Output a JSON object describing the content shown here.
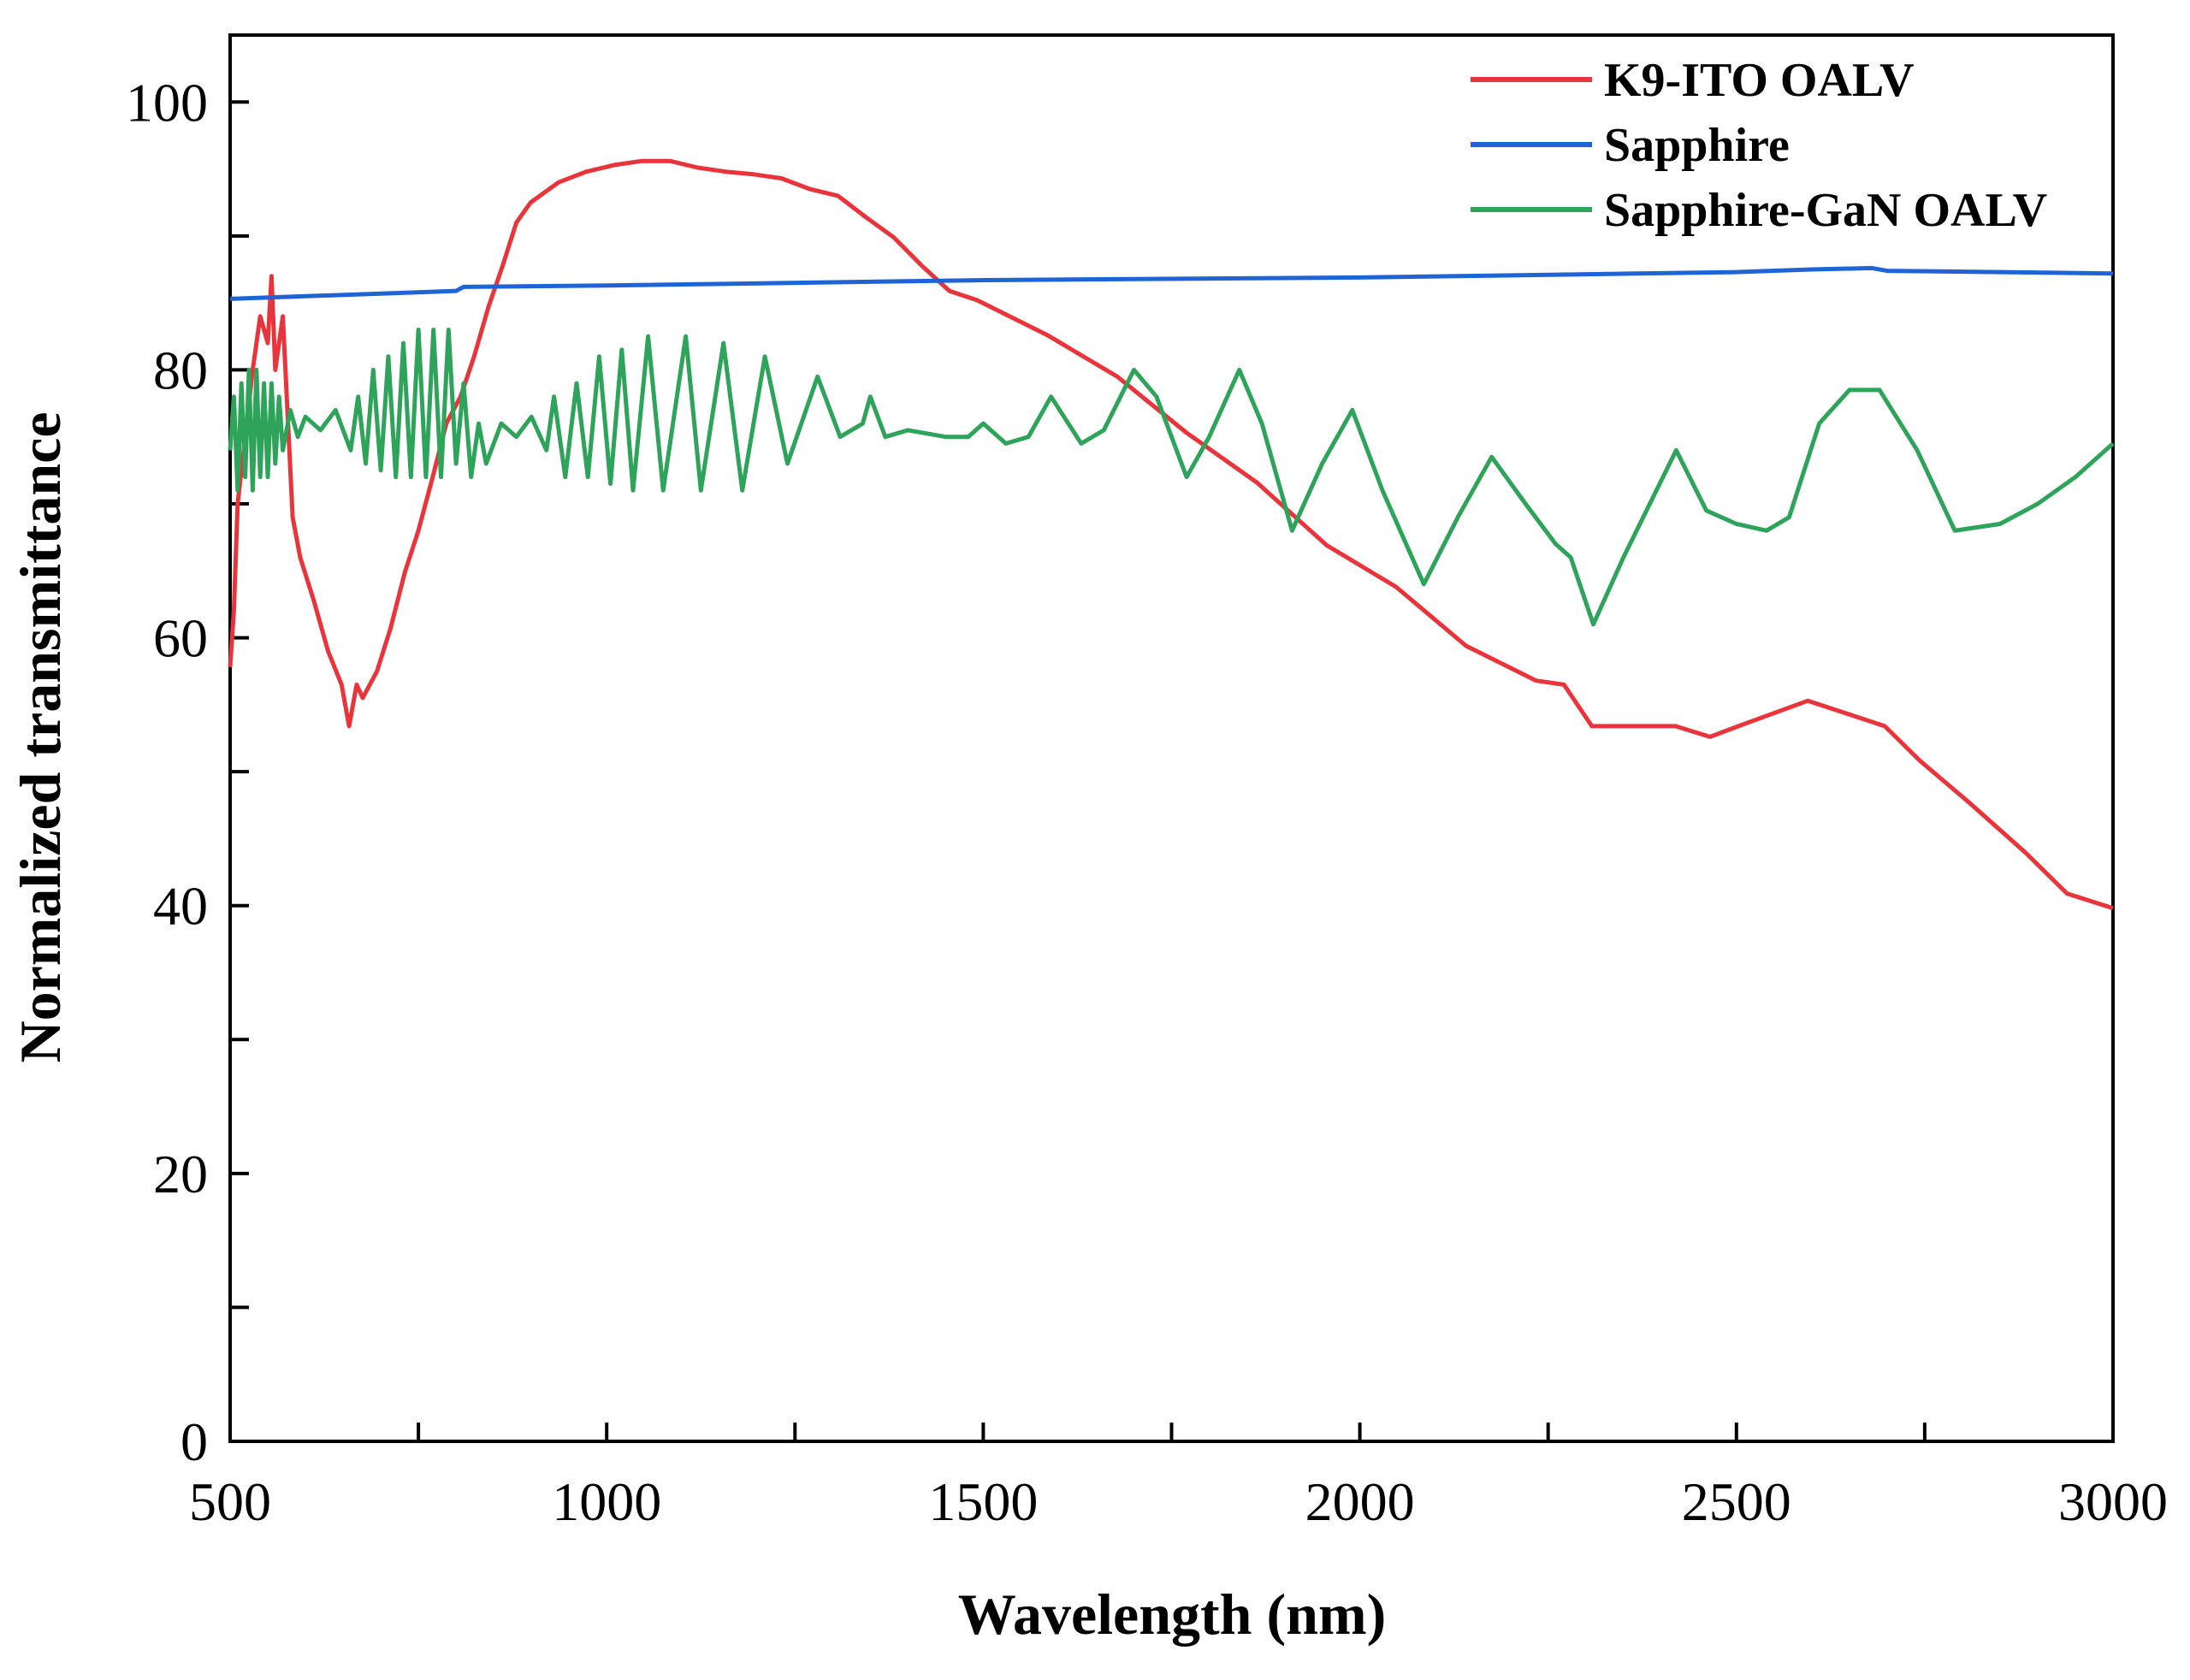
{
  "chart_data": {
    "type": "line",
    "xlabel": "Wavelength (nm)",
    "ylabel": "Normalized transmittance",
    "xlim": [
      500,
      3000
    ],
    "ylim": [
      0,
      105
    ],
    "xticks": [
      500,
      1000,
      1500,
      2000,
      2500,
      3000
    ],
    "xticks_minor": [
      750,
      1250,
      1750,
      2250,
      2750
    ],
    "yticks": [
      0,
      20,
      40,
      60,
      80,
      100
    ],
    "yticks_minor": [
      10,
      30,
      50,
      70,
      90
    ],
    "legend": "upper right",
    "series": [
      {
        "name": "K9-ITO OALV",
        "color": "#e8343a",
        "x": [
          500,
          505,
          510,
          520,
          530,
          540,
          550,
          555,
          560,
          570,
          583,
          593,
          611,
          630,
          648,
          658,
          668,
          676,
          695,
          713,
          732,
          750,
          769,
          787,
          806,
          824,
          843,
          862,
          880,
          899,
          936,
          973,
          1010,
          1047,
          1084,
          1121,
          1158,
          1195,
          1232,
          1270,
          1307,
          1344,
          1381,
          1418,
          1455,
          1492,
          1585,
          1678,
          1770,
          1863,
          1956,
          2048,
          2141,
          2234,
          2271,
          2308,
          2345,
          2419,
          2465,
          2512,
          2595,
          2697,
          2744,
          2809,
          2883,
          2939,
          3000
        ],
        "values": [
          57.8,
          62,
          70,
          75,
          80,
          84,
          82,
          87,
          80,
          84,
          69,
          66,
          62.8,
          59,
          56.5,
          53.4,
          56.5,
          55.5,
          57.5,
          60.7,
          64.9,
          68,
          72,
          76,
          78,
          81,
          84.7,
          87.8,
          91,
          92.5,
          94,
          94.8,
          95.3,
          95.6,
          95.6,
          95.1,
          94.8,
          94.6,
          94.3,
          93.5,
          93,
          91.4,
          89.9,
          87.8,
          85.9,
          85.2,
          82.6,
          79.5,
          75.3,
          71.6,
          66.9,
          63.8,
          59.4,
          56.8,
          56.5,
          53.4,
          53.4,
          53.4,
          52.6,
          53.6,
          55.3,
          53.4,
          50.8,
          47.7,
          44,
          40.9,
          39.8
        ]
      },
      {
        "name": "Sapphire",
        "color": "#1f64d6",
        "x": [
          500,
          800,
          810,
          1000,
          1500,
          2000,
          2500,
          2600,
          2680,
          2700,
          3000
        ],
        "values": [
          85.3,
          85.9,
          86.2,
          86.3,
          86.7,
          86.9,
          87.3,
          87.5,
          87.6,
          87.4,
          87.2
        ]
      },
      {
        "name": "Sapphire-GaN OALV",
        "color": "#2ea35a",
        "x": [
          500,
          505,
          510,
          515,
          520,
          525,
          530,
          535,
          540,
          545,
          550,
          555,
          560,
          565,
          570,
          580,
          590,
          600,
          620,
          640,
          660,
          670,
          680,
          690,
          700,
          710,
          720,
          730,
          740,
          750,
          760,
          770,
          780,
          790,
          800,
          810,
          820,
          830,
          840,
          860,
          880,
          900,
          920,
          930,
          945,
          960,
          975,
          990,
          1005,
          1020,
          1035,
          1055,
          1075,
          1105,
          1125,
          1155,
          1180,
          1210,
          1240,
          1280,
          1310,
          1340,
          1350,
          1370,
          1400,
          1450,
          1480,
          1500,
          1530,
          1560,
          1590,
          1630,
          1660,
          1700,
          1730,
          1770,
          1800,
          1840,
          1870,
          1910,
          1950,
          1990,
          2030,
          2085,
          2130,
          2175,
          2220,
          2260,
          2280,
          2310,
          2350,
          2420,
          2460,
          2500,
          2540,
          2570,
          2610,
          2650,
          2690,
          2740,
          2790,
          2850,
          2900,
          2950,
          3000
        ],
        "values": [
          74,
          78,
          71,
          79,
          72,
          80,
          71,
          80,
          72,
          79,
          72,
          79,
          73,
          78,
          74,
          77,
          75,
          76.5,
          75.5,
          77,
          74,
          78,
          73,
          80,
          72.5,
          81,
          72,
          82,
          72,
          83,
          72,
          83,
          72,
          83,
          73,
          79,
          72,
          76,
          73,
          76,
          75,
          76.5,
          74,
          78,
          72,
          79,
          72,
          81,
          71.5,
          81.5,
          71,
          82.5,
          71,
          82.5,
          71,
          82,
          71,
          81,
          73,
          79.5,
          75,
          76,
          78,
          75,
          75.5,
          75,
          75,
          76,
          74.5,
          75,
          78,
          74.5,
          75.5,
          80,
          78,
          72,
          75,
          80,
          76,
          68,
          73,
          77,
          71,
          64,
          69,
          73.5,
          70,
          67,
          66,
          61,
          66,
          74,
          69.5,
          68.5,
          68,
          69,
          76,
          78.5,
          78.5,
          74,
          68,
          68.5,
          70,
          72,
          74.5
        ]
      }
    ]
  }
}
